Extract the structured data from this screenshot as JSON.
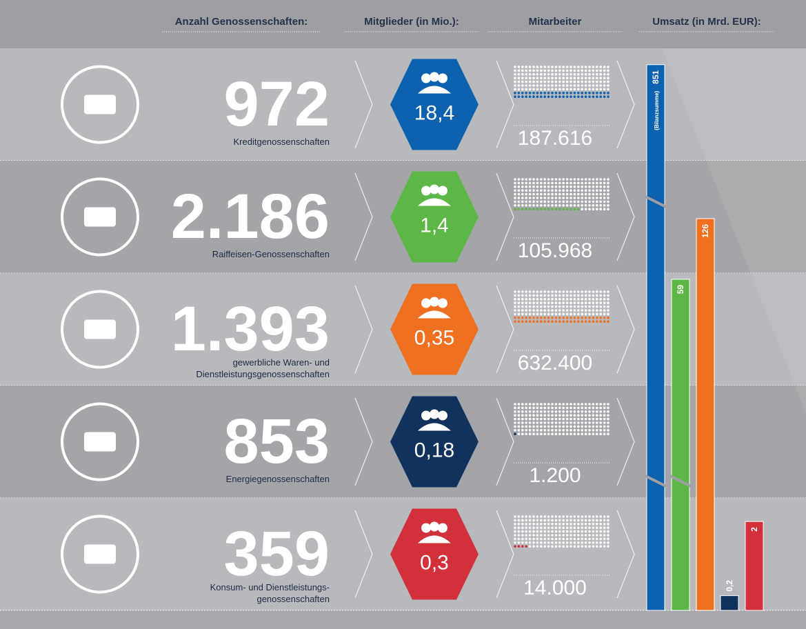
{
  "header": {
    "columns": [
      "Anzahl Genossenschaften:",
      "Mitglieder (in Mio.):",
      "Mitarbeiter",
      "Umsatz (in Mrd. EUR):"
    ]
  },
  "rows": [
    {
      "count": "972",
      "label": [
        "Kreditgenossenschaften"
      ],
      "members": "18,4",
      "employees": "187.616",
      "color": "#0d62b0"
    },
    {
      "count": "2.186",
      "label": [
        "Raiffeisen-Genossenschaften"
      ],
      "members": "1,4",
      "employees": "105.968",
      "color": "#5cb746"
    },
    {
      "count": "1.393",
      "label": [
        "gewerbliche Waren- und",
        "Dienstleistungsgenossenschaften"
      ],
      "members": "0,35",
      "employees": "632.400",
      "color": "#f07022"
    },
    {
      "count": "853",
      "label": [
        "Energiegenossenschaften"
      ],
      "members": "0,18",
      "employees": "1.200",
      "color": "#12325e"
    },
    {
      "count": "359",
      "label": [
        "Konsum- und Dienstleistungs-",
        "genossenschaften"
      ],
      "members": "0,3",
      "employees": "14.000",
      "color": "#d2303a"
    }
  ],
  "turnover": {
    "values": [
      851,
      59,
      126,
      0.2,
      2
    ],
    "value_labels": [
      "851",
      "59",
      "126",
      "0,2",
      "2"
    ],
    "note": "(Bilanzsumme)"
  }
}
